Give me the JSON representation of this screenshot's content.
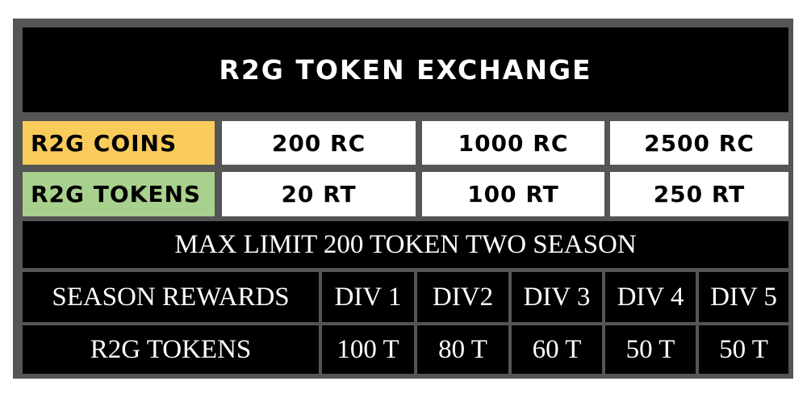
{
  "title": "R2G TOKEN EXCHANGE",
  "exchange": {
    "coins_label": "R2G COINS",
    "tokens_label": "R2G TOKENS",
    "coins": [
      "200 RC",
      "1000 RC",
      "2500 RC"
    ],
    "tokens": [
      "20 RT",
      "100 RT",
      "250 RT"
    ]
  },
  "max_limit": "MAX LIMIT 200 TOKEN TWO SEASON",
  "rewards": {
    "header_label": "SEASON REWARDS",
    "divisions": [
      "DIV 1",
      "DIV2",
      "DIV 3",
      "DIV 4",
      "DIV 5"
    ],
    "tokens_label": "R2G TOKENS",
    "tokens": [
      "100 T",
      "80 T",
      "60 T",
      "50 T",
      "50 T"
    ]
  },
  "colors": {
    "coins_bg": "#f8cb5b",
    "tokens_bg": "#a9d18e",
    "dark_bg": "#000000",
    "light_bg": "#ffffff",
    "border": "#555555"
  }
}
